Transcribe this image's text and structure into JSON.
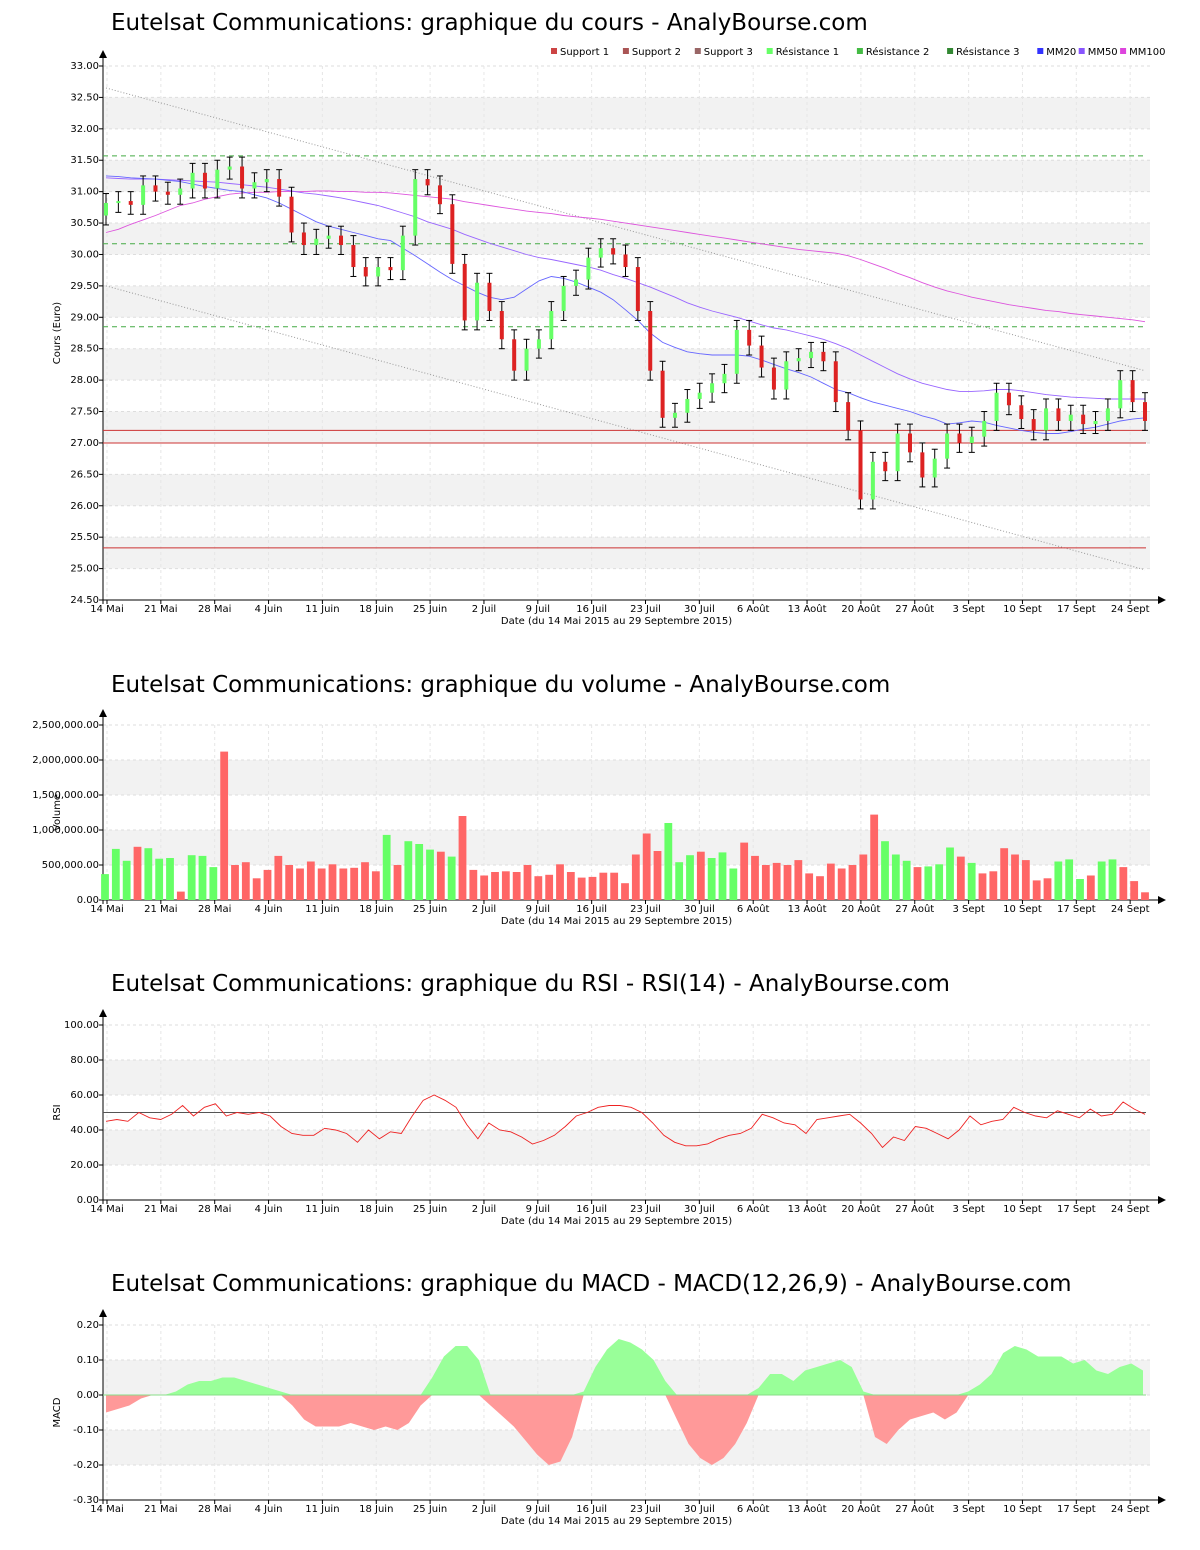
{
  "titles": {
    "price": "Eutelsat Communications: graphique du cours - AnalyBourse.com",
    "volume": "Eutelsat Communications: graphique du volume - AnalyBourse.com",
    "rsi": "Eutelsat Communications: graphique du RSI - RSI(14) - AnalyBourse.com",
    "macd": "Eutelsat Communications: graphique du MACD - MACD(12,26,9) - AnalyBourse.com"
  },
  "xlabel": "Date (du 14 Mai 2015 au 29 Septembre 2015)",
  "x_ticks": [
    "14 Mai",
    "21 Mai",
    "28 Mai",
    "4 Juin",
    "11 Juin",
    "18 Juin",
    "25 Juin",
    "2 Juil",
    "9 Juil",
    "16 Juil",
    "23 Juil",
    "30 Juil",
    "6 Août",
    "13 Août",
    "20 Août",
    "27 Août",
    "3 Sept",
    "10 Sept",
    "17 Sept",
    "24 Sept"
  ],
  "colors": {
    "up": "#66ff66",
    "down": "#dd2222",
    "support": "#cc3333",
    "resistance": "#44aa44",
    "mm20": "#6666ff",
    "mm50": "#9966ff",
    "mm100": "#dd55dd",
    "rsi": "#ee2222",
    "macd_pos": "#99ff99",
    "macd_neg": "#ff9999"
  },
  "chart_data": [
    {
      "type": "candlestick",
      "title": "Eutelsat Communications: graphique du cours - AnalyBourse.com",
      "xlabel": "Date (du 14 Mai 2015 au 29 Septembre 2015)",
      "ylabel": "Cours (Euro)",
      "ylim": [
        24.5,
        33.0
      ],
      "y_ticks": [
        "24.50",
        "25.00",
        "25.50",
        "26.00",
        "26.50",
        "27.00",
        "27.50",
        "28.00",
        "28.50",
        "29.00",
        "29.50",
        "30.00",
        "30.50",
        "31.00",
        "31.50",
        "32.00",
        "32.50",
        "33.00"
      ],
      "legend": [
        {
          "label": "Support 1",
          "color": "#cc4444"
        },
        {
          "label": "Support 2",
          "color": "#aa5555"
        },
        {
          "label": "Support 3",
          "color": "#996666"
        },
        {
          "label": "Résistance 1",
          "color": "#66ff66"
        },
        {
          "label": "Résistance 2",
          "color": "#44bb44"
        },
        {
          "label": "Résistance 3",
          "color": "#338833"
        },
        {
          "label": "MM20",
          "color": "#3333ff"
        },
        {
          "label": "MM50",
          "color": "#8855ff"
        },
        {
          "label": "MM100",
          "color": "#dd44dd"
        }
      ],
      "supports": [
        27.2,
        27.0,
        25.33
      ],
      "resistances": [
        31.57,
        30.17,
        28.85
      ],
      "close": [
        30.82,
        30.85,
        30.79,
        31.1,
        31.0,
        30.95,
        31.05,
        31.3,
        31.05,
        31.35,
        31.4,
        31.05,
        31.15,
        31.2,
        30.92,
        30.35,
        30.15,
        30.25,
        30.3,
        30.15,
        29.8,
        29.65,
        29.8,
        29.75,
        30.3,
        31.2,
        31.1,
        30.8,
        29.85,
        28.95,
        29.55,
        29.1,
        28.65,
        28.15,
        28.5,
        28.65,
        29.1,
        29.5,
        29.6,
        29.95,
        30.1,
        30.0,
        29.8,
        29.1,
        28.15,
        27.4,
        27.48,
        27.7,
        27.8,
        27.95,
        28.1,
        28.8,
        28.55,
        28.2,
        27.85,
        28.3,
        28.35,
        28.45,
        28.3,
        27.65,
        27.2,
        26.1,
        26.7,
        26.55,
        27.15,
        26.85,
        26.45,
        26.75,
        27.15,
        27.0,
        27.1,
        27.35,
        27.8,
        27.6,
        27.38,
        27.2,
        27.55,
        27.35,
        27.45,
        27.3,
        27.35,
        27.55,
        28.0,
        27.65,
        27.35
      ],
      "mm20": [
        31.25,
        31.24,
        31.22,
        31.21,
        31.2,
        31.18,
        31.16,
        31.12,
        31.08,
        31.05,
        31.02,
        31.0,
        30.95,
        30.9,
        30.82,
        30.72,
        30.62,
        30.52,
        30.45,
        30.4,
        30.35,
        30.3,
        30.25,
        30.22,
        30.1,
        29.98,
        29.85,
        29.72,
        29.6,
        29.5,
        29.4,
        29.32,
        29.28,
        29.32,
        29.45,
        29.58,
        29.65,
        29.62,
        29.56,
        29.48,
        29.4,
        29.28,
        29.12,
        28.95,
        28.75,
        28.6,
        28.52,
        28.45,
        28.42,
        28.4,
        28.4,
        28.4,
        28.38,
        28.32,
        28.25,
        28.18,
        28.12,
        28.05,
        27.95,
        27.85,
        27.8,
        27.72,
        27.65,
        27.6,
        27.55,
        27.5,
        27.43,
        27.38,
        27.3,
        27.32,
        27.35,
        27.33,
        27.28,
        27.24,
        27.2,
        27.17,
        27.15,
        27.15,
        27.18,
        27.22,
        27.25,
        27.3,
        27.35,
        27.38,
        27.4
      ],
      "mm50": [
        31.22,
        31.21,
        31.2,
        31.2,
        31.2,
        31.19,
        31.18,
        31.17,
        31.16,
        31.15,
        31.13,
        31.11,
        31.09,
        31.07,
        31.04,
        31.01,
        30.98,
        30.96,
        30.93,
        30.9,
        30.86,
        30.82,
        30.78,
        30.72,
        30.66,
        30.6,
        30.52,
        30.46,
        30.4,
        30.32,
        30.25,
        30.18,
        30.12,
        30.06,
        30.0,
        29.95,
        29.92,
        29.88,
        29.84,
        29.8,
        29.75,
        29.68,
        29.62,
        29.55,
        29.48,
        29.4,
        29.32,
        29.23,
        29.16,
        29.1,
        29.05,
        29.0,
        28.94,
        28.88,
        28.83,
        28.8,
        28.75,
        28.7,
        28.65,
        28.58,
        28.5,
        28.4,
        28.3,
        28.2,
        28.1,
        28.02,
        27.95,
        27.9,
        27.85,
        27.82,
        27.82,
        27.83,
        27.85,
        27.85,
        27.83,
        27.8,
        27.77,
        27.75,
        27.73,
        27.72,
        27.71,
        27.7,
        27.7,
        27.7,
        27.7
      ],
      "mm100": [
        30.35,
        30.4,
        30.48,
        30.55,
        30.62,
        30.7,
        30.78,
        30.82,
        30.88,
        30.92,
        30.96,
        30.98,
        30.99,
        30.99,
        31.0,
        31.0,
        31.0,
        31.01,
        31.01,
        31.0,
        31.0,
        30.99,
        30.99,
        30.98,
        30.96,
        30.94,
        30.92,
        30.9,
        30.88,
        30.84,
        30.81,
        30.78,
        30.75,
        30.72,
        30.69,
        30.67,
        30.65,
        30.62,
        30.6,
        30.58,
        30.56,
        30.53,
        30.5,
        30.47,
        30.44,
        30.41,
        30.38,
        30.35,
        30.32,
        30.29,
        30.26,
        30.23,
        30.2,
        30.17,
        30.14,
        30.11,
        30.08,
        30.06,
        30.04,
        30.02,
        29.98,
        29.92,
        29.85,
        29.78,
        29.7,
        29.63,
        29.55,
        29.48,
        29.42,
        29.37,
        29.32,
        29.28,
        29.24,
        29.2,
        29.17,
        29.14,
        29.11,
        29.09,
        29.06,
        29.04,
        29.02,
        29.0,
        28.98,
        28.96,
        28.93
      ],
      "channel_upper": [
        32.65,
        28.15
      ],
      "channel_lower": [
        29.5,
        24.98
      ]
    },
    {
      "type": "bar",
      "title": "Eutelsat Communications: graphique du volume - AnalyBourse.com",
      "xlabel": "Date (du 14 Mai 2015 au 29 Septembre 2015)",
      "ylabel": "Volume",
      "ylim": [
        0,
        2500000
      ],
      "y_ticks": [
        "0.00",
        "500,000.00",
        "1,000,000.00",
        "1,500,000.00",
        "2,000,000.00",
        "2,500,000.00"
      ],
      "values": [
        370000,
        730000,
        560000,
        760000,
        740000,
        590000,
        600000,
        120000,
        640000,
        630000,
        470000,
        2120000,
        500000,
        540000,
        310000,
        430000,
        630000,
        500000,
        450000,
        550000,
        450000,
        510000,
        450000,
        460000,
        540000,
        410000,
        930000,
        500000,
        840000,
        800000,
        720000,
        690000,
        620000,
        1200000,
        430000,
        350000,
        400000,
        410000,
        400000,
        500000,
        340000,
        360000,
        510000,
        400000,
        320000,
        330000,
        390000,
        390000,
        240000,
        650000,
        950000,
        700000,
        1100000,
        540000,
        640000,
        690000,
        600000,
        680000,
        450000,
        820000,
        630000,
        500000,
        530000,
        500000,
        570000,
        380000,
        340000,
        520000,
        450000,
        500000,
        650000,
        1220000,
        840000,
        650000,
        560000,
        470000,
        480000,
        510000,
        750000,
        620000,
        530000,
        380000,
        410000,
        740000,
        650000,
        570000,
        280000,
        310000,
        550000,
        580000,
        300000,
        350000,
        550000,
        580000,
        470000,
        270000,
        110000
      ]
    },
    {
      "type": "line",
      "title": "Eutelsat Communications: graphique du RSI - RSI(14) - AnalyBourse.com",
      "xlabel": "Date (du 14 Mai 2015 au 29 Septembre 2015)",
      "ylabel": "RSI",
      "ylim": [
        0,
        100
      ],
      "y_ticks": [
        "0.00",
        "20.00",
        "40.00",
        "60.00",
        "80.00",
        "100.00"
      ],
      "reference": 50,
      "values": [
        45,
        46,
        45,
        50,
        47,
        46,
        49,
        54,
        48,
        53,
        55,
        48,
        50,
        49,
        50,
        48,
        42,
        38,
        37,
        37,
        41,
        40,
        38,
        33,
        40,
        35,
        39,
        38,
        48,
        57,
        60,
        57,
        53,
        43,
        35,
        44,
        40,
        39,
        36,
        32,
        34,
        37,
        42,
        48,
        50,
        53,
        54,
        54,
        53,
        50,
        44,
        37,
        33,
        31,
        31,
        32,
        35,
        37,
        38,
        41,
        49,
        47,
        44,
        43,
        38,
        46,
        47,
        48,
        49,
        44,
        38,
        30,
        36,
        34,
        42,
        41,
        38,
        35,
        40,
        48,
        43,
        45,
        46,
        53,
        50,
        48,
        47,
        51,
        49,
        47,
        52,
        48,
        49,
        56,
        52,
        49
      ]
    },
    {
      "type": "area",
      "title": "Eutelsat Communications: graphique du MACD - MACD(12,26,9) - AnalyBourse.com",
      "xlabel": "Date (du 14 Mai 2015 au 29 Septembre 2015)",
      "ylabel": "MACD",
      "ylim": [
        -0.3,
        0.2
      ],
      "y_ticks": [
        "-0.30",
        "-0.20",
        "-0.10",
        "0.00",
        "0.10",
        "0.20"
      ],
      "values": [
        -0.05,
        -0.04,
        -0.03,
        -0.01,
        0.0,
        0.0,
        0.01,
        0.03,
        0.04,
        0.04,
        0.05,
        0.05,
        0.04,
        0.03,
        0.02,
        0.01,
        -0.03,
        -0.07,
        -0.09,
        -0.09,
        -0.09,
        -0.08,
        -0.09,
        -0.1,
        -0.09,
        -0.1,
        -0.08,
        -0.03,
        0.05,
        0.11,
        0.14,
        0.14,
        0.1,
        -0.03,
        -0.06,
        -0.09,
        -0.13,
        -0.17,
        -0.2,
        -0.19,
        -0.12,
        0.01,
        0.08,
        0.13,
        0.16,
        0.15,
        0.13,
        0.1,
        0.04,
        -0.07,
        -0.14,
        -0.18,
        -0.2,
        -0.18,
        -0.14,
        -0.08,
        0.02,
        0.06,
        0.06,
        0.04,
        0.07,
        0.08,
        0.09,
        0.1,
        0.08,
        0.01,
        -0.12,
        -0.14,
        -0.1,
        -0.07,
        -0.06,
        -0.05,
        -0.07,
        -0.05,
        0.01,
        0.03,
        0.06,
        0.12,
        0.14,
        0.13,
        0.11,
        0.11,
        0.11,
        0.09,
        0.1,
        0.07,
        0.06,
        0.08,
        0.09,
        0.07
      ]
    }
  ]
}
